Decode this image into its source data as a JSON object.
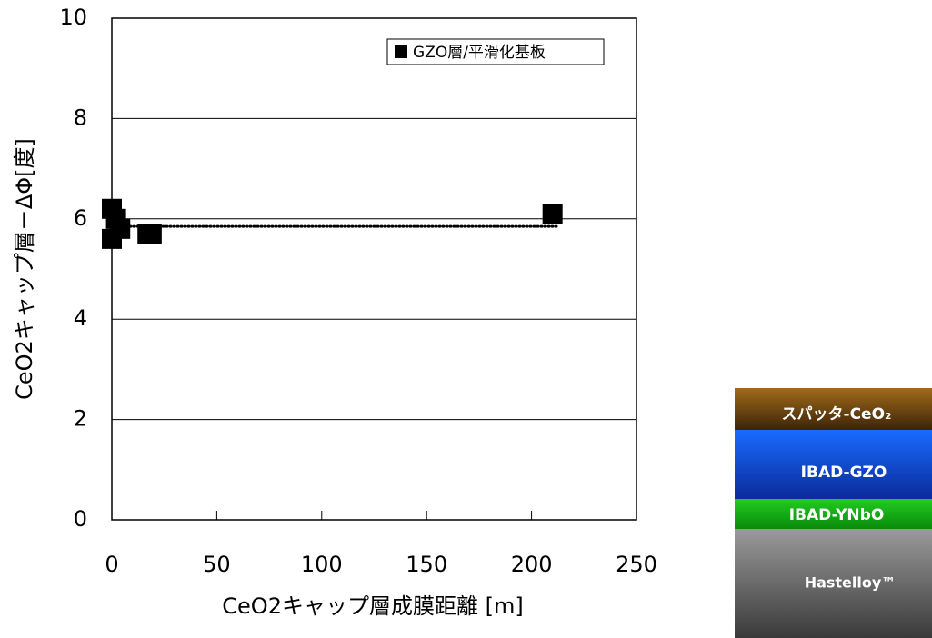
{
  "chart_data": {
    "type": "scatter",
    "x_label": "CeO2キャップ層成膜距離 [m]",
    "y_label": "CeO2キャップ層－ΔΦ[度]",
    "series": [
      {
        "name": "GZO層/平滑化基板",
        "color": "#000000",
        "x": [
          0,
          0,
          2,
          4,
          17,
          19,
          210
        ],
        "values": [
          6.2,
          5.6,
          6.0,
          5.8,
          5.7,
          5.7,
          6.1
        ]
      }
    ],
    "trendline": {
      "x": [
        0,
        212
      ],
      "values": [
        5.85,
        5.85
      ]
    },
    "xlim": [
      0,
      250
    ],
    "xticks": [
      0,
      50,
      100,
      150,
      200,
      250
    ],
    "ylim": [
      0,
      10
    ],
    "yticks": [
      0,
      2,
      4,
      6,
      8,
      10
    ],
    "grid": true,
    "legend": "upper-right"
  },
  "diagram": {
    "layers": [
      "スパッタ-CeO₂",
      "IBAD-GZO",
      "IBAD-YNbO",
      "Hastelloy™"
    ]
  }
}
